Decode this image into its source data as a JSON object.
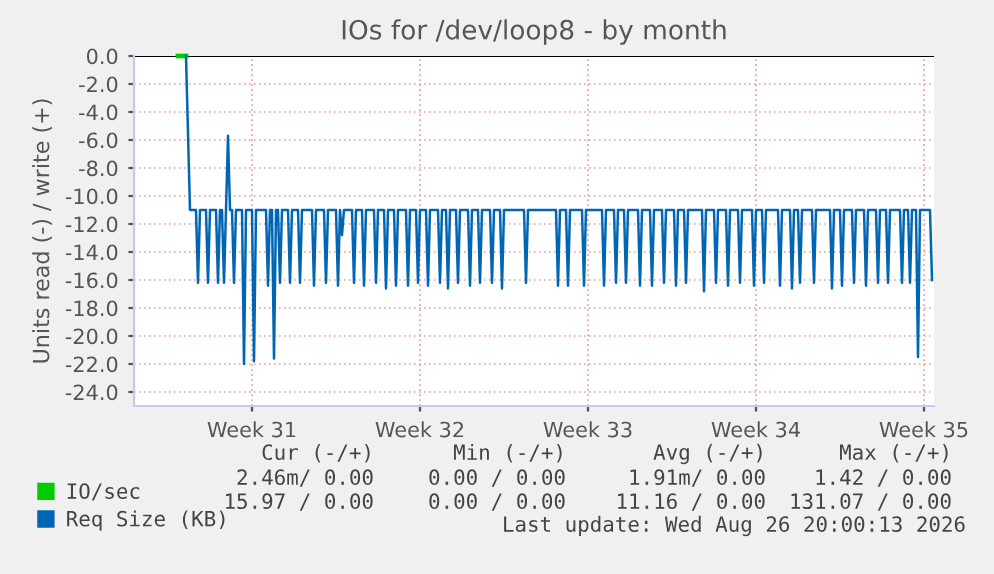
{
  "chart_data": {
    "type": "line",
    "title": "IOs for /dev/loop8 - by month",
    "ylabel": "Units read (-) / write (+)",
    "xlim": [
      "2026-07-22T02:00",
      "2026-08-24T10:00"
    ],
    "ylim": [
      -25,
      0
    ],
    "xticks": [
      {
        "value": "2026-07-27",
        "label": "Week 31"
      },
      {
        "value": "2026-08-03",
        "label": "Week 32"
      },
      {
        "value": "2026-08-10",
        "label": "Week 33"
      },
      {
        "value": "2026-08-17",
        "label": "Week 34"
      },
      {
        "value": "2026-08-24",
        "label": "Week 35"
      }
    ],
    "yticks": [
      {
        "value": 0,
        "label": "0.0"
      },
      {
        "value": -2,
        "label": "-2.0"
      },
      {
        "value": -4,
        "label": "-4.0"
      },
      {
        "value": -6,
        "label": "-6.0"
      },
      {
        "value": -8,
        "label": "-8.0"
      },
      {
        "value": -10,
        "label": "-10.0"
      },
      {
        "value": -12,
        "label": "-12.0"
      },
      {
        "value": -14,
        "label": "-14.0"
      },
      {
        "value": -16,
        "label": "-16.0"
      },
      {
        "value": -18,
        "label": "-18.0"
      },
      {
        "value": -20,
        "label": "-20.0"
      },
      {
        "value": -22,
        "label": "-22.0"
      },
      {
        "value": -24,
        "label": "-24.0"
      }
    ],
    "grid": true,
    "legend": "bottom",
    "ref_lines": [
      {
        "axis": "y",
        "value": 0,
        "color": "#000000"
      }
    ],
    "series": [
      {
        "name": "Req Size (KB)",
        "color": "#0066b3",
        "x": [
          "2026-07-24T06:00",
          "2026-07-24T10:00",
          "2026-07-24T16:00",
          "2026-07-24T18:00",
          "2026-07-24T20:00",
          "2026-07-25T02:00",
          "2026-07-25T04:00",
          "2026-07-25T06:00",
          "2026-07-25T12:00",
          "2026-07-25T14:00",
          "2026-07-25T16:00",
          "2026-07-25T18:00",
          "2026-07-25T20:00",
          "2026-07-25T22:00",
          "2026-07-26T00:00",
          "2026-07-26T02:00",
          "2026-07-26T04:00",
          "2026-07-26T06:00",
          "2026-07-26T08:00",
          "2026-07-26T14:00",
          "2026-07-26T16:00",
          "2026-07-26T18:00",
          "2026-07-27T00:00",
          "2026-07-27T02:00",
          "2026-07-27T04:00",
          "2026-07-27T14:00",
          "2026-07-27T16:00",
          "2026-07-27T18:00",
          "2026-07-27T20:00",
          "2026-07-27T22:00",
          "2026-07-28T00:00",
          "2026-07-28T02:00",
          "2026-07-28T04:00",
          "2026-07-28T06:00",
          "2026-07-28T12:00",
          "2026-07-28T14:00",
          "2026-07-28T16:00",
          "2026-07-28T22:00",
          "2026-07-29T00:00",
          "2026-07-29T02:00",
          "2026-07-29T12:00",
          "2026-07-29T14:00",
          "2026-07-29T16:00",
          "2026-07-30T00:00",
          "2026-07-30T02:00",
          "2026-07-30T04:00",
          "2026-07-30T12:00",
          "2026-07-30T14:00",
          "2026-07-30T16:00",
          "2026-07-30T18:00",
          "2026-07-30T20:00",
          "2026-07-31T04:00",
          "2026-07-31T06:00",
          "2026-07-31T08:00",
          "2026-07-31T14:00",
          "2026-07-31T16:00",
          "2026-07-31T18:00",
          "2026-08-01T02:00",
          "2026-08-01T04:00",
          "2026-08-01T06:00",
          "2026-08-01T12:00",
          "2026-08-01T14:00",
          "2026-08-01T16:00",
          "2026-08-01T22:00",
          "2026-08-02T00:00",
          "2026-08-02T02:00",
          "2026-08-02T10:00",
          "2026-08-02T12:00",
          "2026-08-02T14:00",
          "2026-08-02T20:00",
          "2026-08-02T22:00",
          "2026-08-03T00:00",
          "2026-08-03T06:00",
          "2026-08-03T08:00",
          "2026-08-03T10:00",
          "2026-08-03T18:00",
          "2026-08-03T20:00",
          "2026-08-03T22:00",
          "2026-08-04T02:00",
          "2026-08-04T04:00",
          "2026-08-04T06:00",
          "2026-08-04T12:00",
          "2026-08-04T14:00",
          "2026-08-04T16:00",
          "2026-08-05T00:00",
          "2026-08-05T02:00",
          "2026-08-05T04:00",
          "2026-08-05T10:00",
          "2026-08-05T12:00",
          "2026-08-05T14:00",
          "2026-08-05T22:00",
          "2026-08-06T00:00",
          "2026-08-06T02:00",
          "2026-08-06T08:00",
          "2026-08-06T10:00",
          "2026-08-06T12:00",
          "2026-08-07T08:00",
          "2026-08-07T10:00",
          "2026-08-07T12:00",
          "2026-08-08T16:00",
          "2026-08-08T18:00",
          "2026-08-08T20:00",
          "2026-08-09T02:00",
          "2026-08-09T04:00",
          "2026-08-09T06:00",
          "2026-08-09T18:00",
          "2026-08-09T20:00",
          "2026-08-09T22:00",
          "2026-08-10T14:00",
          "2026-08-10T16:00",
          "2026-08-10T18:00",
          "2026-08-11T02:00",
          "2026-08-11T04:00",
          "2026-08-11T06:00",
          "2026-08-11T12:00",
          "2026-08-11T14:00",
          "2026-08-11T16:00",
          "2026-08-12T02:00",
          "2026-08-12T04:00",
          "2026-08-12T06:00",
          "2026-08-12T14:00",
          "2026-08-12T16:00",
          "2026-08-12T18:00",
          "2026-08-13T02:00",
          "2026-08-13T04:00",
          "2026-08-13T06:00",
          "2026-08-13T14:00",
          "2026-08-13T16:00",
          "2026-08-13T18:00",
          "2026-08-14T00:00",
          "2026-08-14T02:00",
          "2026-08-14T04:00",
          "2026-08-14T18:00",
          "2026-08-14T20:00",
          "2026-08-14T22:00",
          "2026-08-15T06:00",
          "2026-08-15T08:00",
          "2026-08-15T10:00",
          "2026-08-15T18:00",
          "2026-08-15T20:00",
          "2026-08-15T22:00",
          "2026-08-16T06:00",
          "2026-08-16T08:00",
          "2026-08-16T10:00",
          "2026-08-16T20:00",
          "2026-08-16T22:00",
          "2026-08-17T00:00",
          "2026-08-17T06:00",
          "2026-08-17T08:00",
          "2026-08-17T10:00",
          "2026-08-17T22:00",
          "2026-08-18T00:00",
          "2026-08-18T02:00",
          "2026-08-18T10:00",
          "2026-08-18T12:00",
          "2026-08-18T14:00",
          "2026-08-18T18:00",
          "2026-08-18T20:00",
          "2026-08-18T22:00",
          "2026-08-19T08:00",
          "2026-08-19T10:00",
          "2026-08-19T12:00",
          "2026-08-20T02:00",
          "2026-08-20T04:00",
          "2026-08-20T06:00",
          "2026-08-20T12:00",
          "2026-08-20T14:00",
          "2026-08-20T16:00",
          "2026-08-21T00:00",
          "2026-08-21T02:00",
          "2026-08-21T04:00",
          "2026-08-21T12:00",
          "2026-08-21T14:00",
          "2026-08-21T16:00",
          "2026-08-22T00:00",
          "2026-08-22T02:00",
          "2026-08-22T04:00",
          "2026-08-22T10:00",
          "2026-08-22T12:00",
          "2026-08-22T14:00",
          "2026-08-23T00:00",
          "2026-08-23T02:00",
          "2026-08-23T04:00",
          "2026-08-23T08:00",
          "2026-08-23T10:00",
          "2026-08-23T12:00",
          "2026-08-23T16:00",
          "2026-08-23T18:00",
          "2026-08-23T20:00",
          "2026-08-24T06:00",
          "2026-08-24T08:00"
        ],
        "values": [
          0,
          -11,
          -11,
          -16.2,
          -11,
          -11,
          -16.2,
          -11,
          -11,
          -16.2,
          -11,
          -11,
          -16.2,
          -11,
          -5.7,
          -11,
          -11,
          -16.2,
          -11,
          -11,
          -22.0,
          -11,
          -11,
          -21.8,
          -11,
          -11,
          -16.4,
          -11,
          -11,
          -21.6,
          -11,
          -11,
          -16.2,
          -11,
          -11,
          -16.2,
          -11,
          -11,
          -16.2,
          -11,
          -11,
          -16.4,
          -11,
          -11,
          -16.2,
          -11,
          -11,
          -16.4,
          -11,
          -12.8,
          -11,
          -11,
          -16.2,
          -11,
          -11,
          -16.4,
          -11,
          -11,
          -16.2,
          -11,
          -11,
          -16.6,
          -11,
          -11,
          -16.4,
          -11,
          -11,
          -16.4,
          -11,
          -11,
          -16.2,
          -11,
          -11,
          -16.4,
          -11,
          -11,
          -16.2,
          -11,
          -11,
          -16.6,
          -11,
          -11,
          -16.2,
          -11,
          -11,
          -16.4,
          -11,
          -11,
          -16.2,
          -11,
          -11,
          -16.2,
          -11,
          -11,
          -16.6,
          -11,
          -11,
          -16.2,
          -11,
          -11,
          -16.4,
          -11,
          -11,
          -16.4,
          -11,
          -11,
          -16.4,
          -11,
          -11,
          -16.4,
          -11,
          -11,
          -16.2,
          -11,
          -11,
          -16.2,
          -11,
          -11,
          -16.4,
          -11,
          -11,
          -16.4,
          -11,
          -11,
          -16.2,
          -11,
          -11,
          -16.4,
          -11,
          -11,
          -16.2,
          -11,
          -11,
          -16.8,
          -11,
          -11,
          -16.2,
          -11,
          -11,
          -16.4,
          -11,
          -11,
          -16.2,
          -11,
          -11,
          -16.4,
          -11,
          -11,
          -16.2,
          -11,
          -11,
          -16.4,
          -11,
          -11,
          -16.6,
          -11,
          -11,
          -16.2,
          -11,
          -11,
          -16.2,
          -11,
          -11,
          -16.6,
          -11,
          -11,
          -16.4,
          -11,
          -11,
          -16.2,
          -11,
          -11,
          -16.4,
          -11,
          -11,
          -16.2,
          -11,
          -11,
          -16.2,
          -11,
          -11,
          -16.2,
          -11,
          -11,
          -16.2,
          -11,
          -11,
          -21.5,
          -11,
          -11,
          -16.0
        ]
      },
      {
        "name": "IO/sec",
        "color": "#00cc00",
        "x": [
          "2026-07-23T22:00",
          "2026-07-24T06:00"
        ],
        "values": [
          0,
          0
        ]
      }
    ],
    "annotations": [
      "Cur (-/+)",
      "Min (-/+)",
      "Avg (-/+)",
      "Max (-/+)",
      "2.46m/ 0.00",
      "0.00 / 0.00",
      "1.91m/ 0.00",
      "1.42 / 0.00",
      "15.97 / 0.00",
      "0.00 / 0.00",
      "11.16 / 0.00",
      "131.07 / 0.00",
      "Last update: Wed Aug 26 20:00:13 2026"
    ]
  }
}
